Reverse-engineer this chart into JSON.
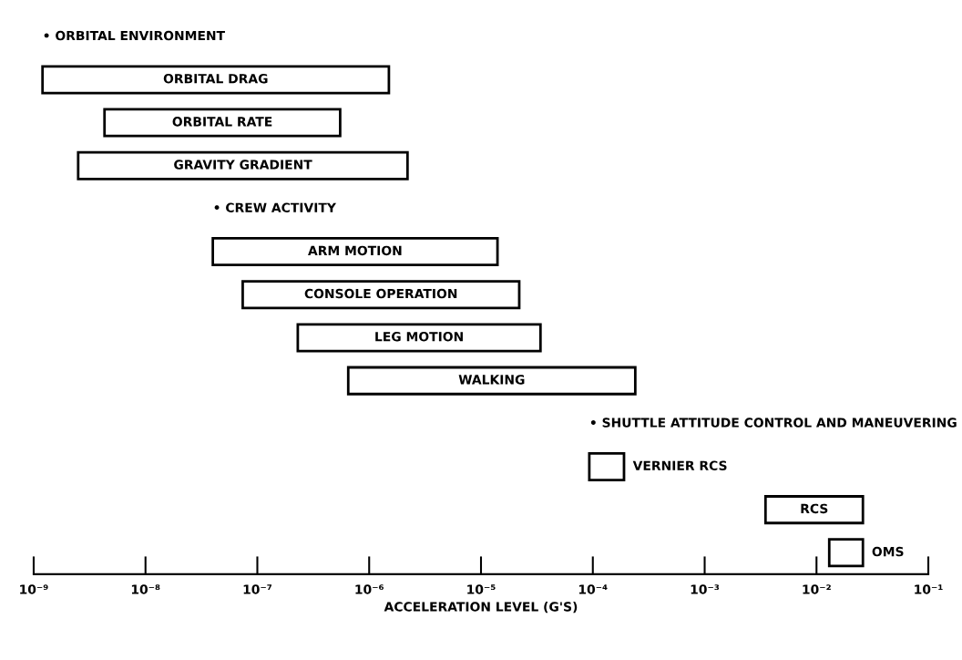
{
  "chart_data": {
    "type": "bar",
    "orientation": "horizontal",
    "xlabel": "ACCELERATION LEVEL (G'S)",
    "categories": [
      null,
      "ORBITAL DRAG",
      "ORBITAL RATE",
      "GRAVITY GRADIENT",
      null,
      "ARM MOTION",
      "CONSOLE OPERATION",
      "LEG MOTION",
      "WALKING",
      null,
      "VERNIER RCS",
      "RCS",
      "OMS"
    ],
    "base": [
      null,
      1.2e-09,
      4.3e-09,
      2.5e-09,
      null,
      4e-08,
      7.4e-08,
      2.3e-07,
      6.5e-07,
      null,
      9.3e-05,
      0.0035,
      0.013
    ],
    "values": [
      null,
      1.5e-06,
      5.46e-07,
      2.2e-06,
      null,
      1.4e-05,
      2.19e-05,
      3.38e-05,
      0.000239,
      null,
      9.7e-05,
      0.0225,
      0.013
    ],
    "color": "#ffffff",
    "annotations": [
      "• ORBITAL ENVIRONMENT",
      "• CREW ACTIVITY",
      "• SHUTTLE ATTITUDE CONTROL AND MANEUVERING"
    ],
    "log": "x",
    "xlim": [
      1e-09,
      0.1
    ],
    "xticks": [
      {
        "value": 1e-09,
        "label": "10⁻⁹"
      },
      {
        "value": 1e-08,
        "label": "10⁻⁸"
      },
      {
        "value": 1e-07,
        "label": "10⁻⁷"
      },
      {
        "value": 1e-06,
        "label": "10⁻⁶"
      },
      {
        "value": 1e-05,
        "label": "10⁻⁵"
      },
      {
        "value": 0.0001,
        "label": "10⁻⁴"
      },
      {
        "value": 0.001,
        "label": "10⁻³"
      },
      {
        "value": 0.01,
        "label": "10⁻²"
      },
      {
        "value": 0.1,
        "label": "10⁻¹"
      }
    ],
    "tick_labels": "x",
    "grid": false
  }
}
